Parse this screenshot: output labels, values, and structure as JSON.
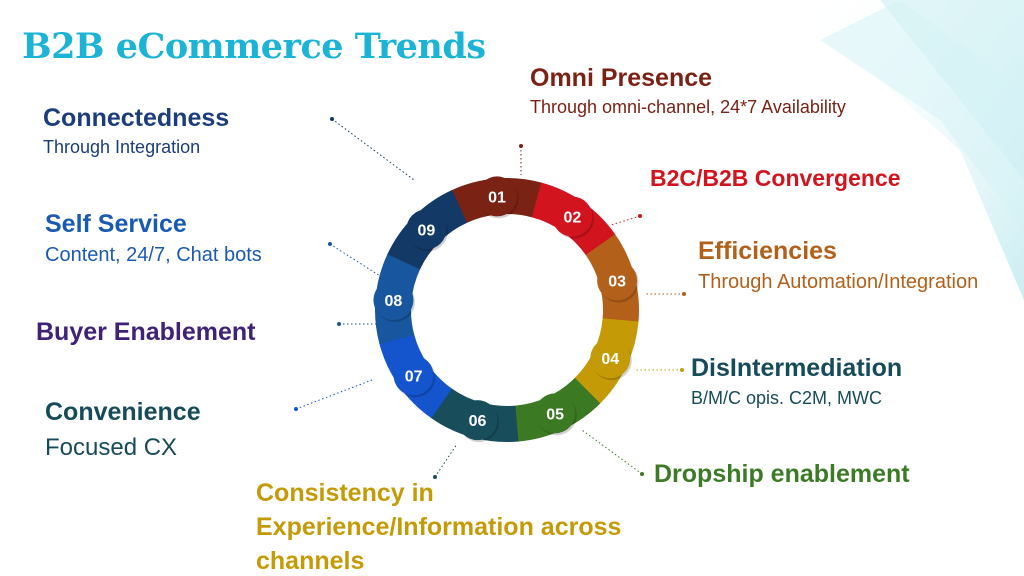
{
  "title": "B2B eCommerce Trends",
  "colors": {
    "title": "#1bb3d6",
    "c01": "#7a2214",
    "c02": "#d1141e",
    "c03": "#b2601a",
    "c04": "#c59a07",
    "c05": "#3c7923",
    "c06": "#184d5c",
    "c07": "#1454cc",
    "c08": "#18579f",
    "c09": "#133a66",
    "purple": "#3f2278",
    "green": "#3c7b25",
    "navy": "#1b3d7c",
    "blue": "#1a5bb1",
    "teal": "#164b59"
  },
  "segments": [
    {
      "num": "01",
      "color": "#7a2214"
    },
    {
      "num": "02",
      "color": "#d1141e"
    },
    {
      "num": "03",
      "color": "#b2601a"
    },
    {
      "num": "04",
      "color": "#c59a07"
    },
    {
      "num": "05",
      "color": "#3c7923"
    },
    {
      "num": "06",
      "color": "#184d5c"
    },
    {
      "num": "07",
      "color": "#1454cc"
    },
    {
      "num": "08",
      "color": "#18579f"
    },
    {
      "num": "09",
      "color": "#133a66"
    }
  ],
  "items": {
    "omni_presence": {
      "head": "Omni Presence",
      "sub": "Through omni-channel, 24*7 Availability"
    },
    "b2c_b2b_convergence": {
      "head": "B2C/B2B Convergence"
    },
    "efficiencies": {
      "head": "Efficiencies",
      "sub": "Through Automation/Integration"
    },
    "disintermediation": {
      "head": "DisIntermediation",
      "sub": "B/M/C opis. C2M, MWC"
    },
    "dropship": {
      "head": "Dropship enablement"
    },
    "consistency": {
      "head": "Consistency in Experience/Information across channels"
    },
    "convenience": {
      "head": "Convenience",
      "sub": "Focused CX"
    },
    "buyer_enablement": {
      "head": "Buyer Enablement"
    },
    "self_service": {
      "head": "Self Service",
      "sub": "Content, 24/7, Chat bots"
    },
    "connectedness": {
      "head": "Connectedness",
      "sub": "Through Integration"
    }
  }
}
